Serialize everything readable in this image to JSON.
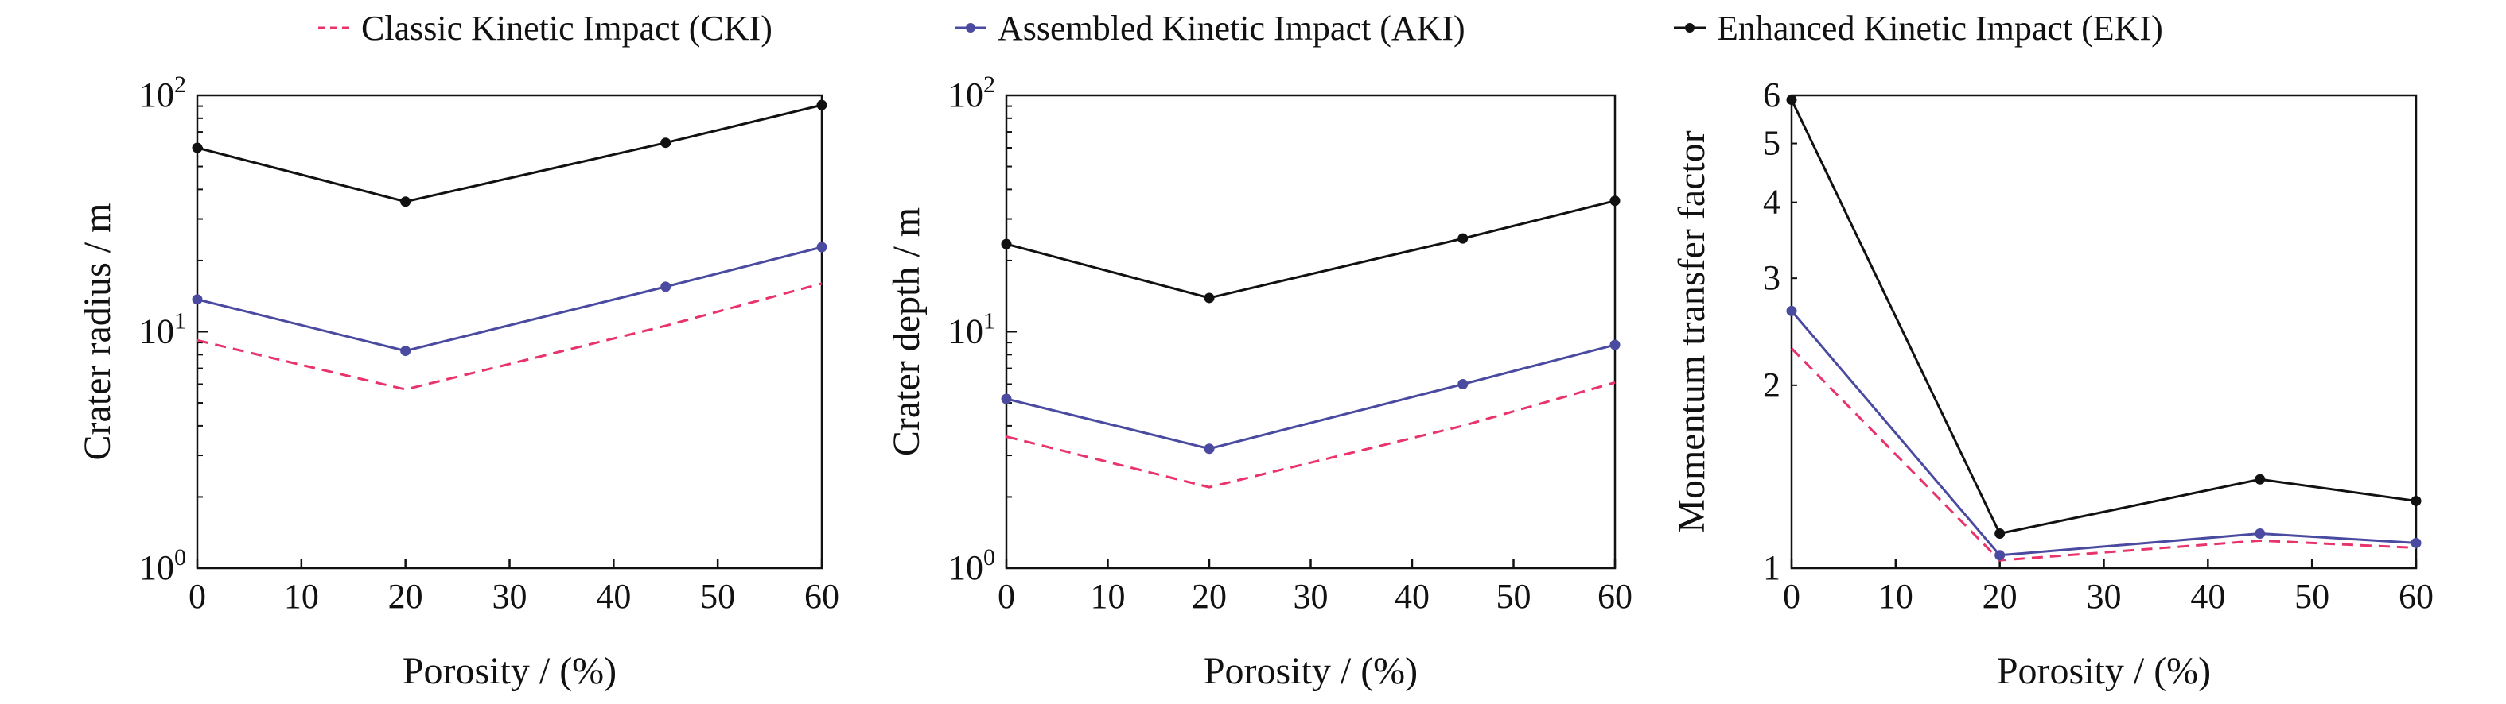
{
  "colors": {
    "CKI": "#e8336b",
    "AKI": "#4a4aa0",
    "EKI": "#111111",
    "axis": "#111111"
  },
  "legend": {
    "items": [
      {
        "key": "CKI",
        "label": "Classic Kinetic Impact (CKI)",
        "style": "dashed",
        "marker": false
      },
      {
        "key": "AKI",
        "label": "Assembled Kinetic Impact (AKI)",
        "style": "solid",
        "marker": true
      },
      {
        "key": "EKI",
        "label": "Enhanced Kinetic Impact (EKI)",
        "style": "solid",
        "marker": true
      }
    ]
  },
  "chart_data": [
    {
      "type": "line",
      "xlabel": "Porosity / (%)",
      "ylabel": "Crater radius / m",
      "xlim": [
        0,
        60
      ],
      "xticks": [
        0,
        10,
        20,
        30,
        40,
        50,
        60
      ],
      "yscale": "log",
      "ylim": [
        1,
        100
      ],
      "yticks": [
        {
          "v": 1,
          "base": "10",
          "exp": "0"
        },
        {
          "v": 10,
          "base": "10",
          "exp": "1"
        },
        {
          "v": 100,
          "base": "10",
          "exp": "2"
        }
      ],
      "x": [
        0,
        20,
        45,
        60
      ],
      "series": [
        {
          "key": "CKI",
          "name": "Classic Kinetic Impact (CKI)",
          "values": [
            9.2,
            5.7,
            10.6,
            16.0
          ]
        },
        {
          "key": "AKI",
          "name": "Assembled Kinetic Impact (AKI)",
          "values": [
            13.7,
            8.3,
            15.5,
            22.8
          ]
        },
        {
          "key": "EKI",
          "name": "Enhanced Kinetic Impact (EKI)",
          "values": [
            60,
            35.5,
            63,
            91
          ]
        }
      ]
    },
    {
      "type": "line",
      "xlabel": "Porosity / (%)",
      "ylabel": "Crater depth / m",
      "xlim": [
        0,
        60
      ],
      "xticks": [
        0,
        10,
        20,
        30,
        40,
        50,
        60
      ],
      "yscale": "log",
      "ylim": [
        1,
        100
      ],
      "yticks": [
        {
          "v": 1,
          "base": "10",
          "exp": "0"
        },
        {
          "v": 10,
          "base": "10",
          "exp": "1"
        },
        {
          "v": 100,
          "base": "10",
          "exp": "2"
        }
      ],
      "x": [
        0,
        20,
        45,
        60
      ],
      "series": [
        {
          "key": "CKI",
          "name": "Classic Kinetic Impact (CKI)",
          "values": [
            3.6,
            2.2,
            4.0,
            6.1
          ]
        },
        {
          "key": "AKI",
          "name": "Assembled Kinetic Impact (AKI)",
          "values": [
            5.2,
            3.2,
            6.0,
            8.8
          ]
        },
        {
          "key": "EKI",
          "name": "Enhanced Kinetic Impact (EKI)",
          "values": [
            23.5,
            13.9,
            24.8,
            35.8
          ]
        }
      ]
    },
    {
      "type": "line",
      "xlabel": "Porosity / (%)",
      "ylabel": "Momentum transfer factor",
      "xlim": [
        0,
        60
      ],
      "xticks": [
        0,
        10,
        20,
        30,
        40,
        50,
        60
      ],
      "yscale": "log",
      "ylim": [
        1,
        6
      ],
      "yticks": [
        {
          "v": 1,
          "label": "1"
        },
        {
          "v": 2,
          "label": "2"
        },
        {
          "v": 3,
          "label": "3"
        },
        {
          "v": 4,
          "label": "4"
        },
        {
          "v": 5,
          "label": "5"
        },
        {
          "v": 6,
          "label": "6"
        }
      ],
      "x": [
        0,
        20,
        45,
        60
      ],
      "series": [
        {
          "key": "CKI",
          "name": "Classic Kinetic Impact (CKI)",
          "values": [
            2.3,
            1.03,
            1.11,
            1.08
          ]
        },
        {
          "key": "AKI",
          "name": "Assembled Kinetic Impact (AKI)",
          "values": [
            2.65,
            1.05,
            1.14,
            1.1
          ]
        },
        {
          "key": "EKI",
          "name": "Enhanced Kinetic Impact (EKI)",
          "values": [
            5.9,
            1.14,
            1.4,
            1.29
          ]
        }
      ]
    }
  ]
}
